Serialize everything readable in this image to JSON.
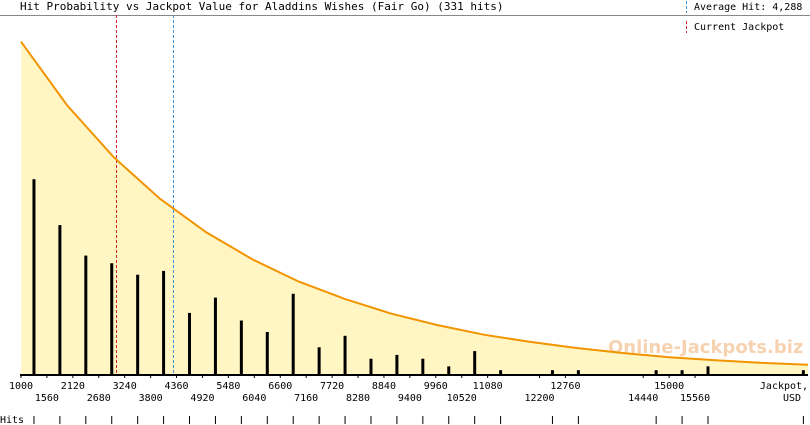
{
  "chart_data": {
    "type": "bar",
    "title": "Hit Probability vs Jackpot Value for Aladdins Wishes (Fair Go) (331 hits)",
    "legend": [
      {
        "label": "Average Hit: 4,288",
        "value": 4288,
        "color": "#3a8fd8"
      },
      {
        "label": "Current Jackpot",
        "value": 3043,
        "color": "#cc2222"
      }
    ],
    "watermark": "Online-Jackpots.biz",
    "x_label": [
      "Jackpot,",
      "USD"
    ],
    "rug_label": "Hits",
    "xlim": [
      1000,
      18000
    ],
    "ylim": [
      0,
      94
    ],
    "xticks": [
      1000,
      1560,
      2120,
      2680,
      3240,
      3800,
      4360,
      4920,
      5480,
      6040,
      6600,
      7160,
      7720,
      8280,
      8840,
      9400,
      9960,
      10520,
      11080,
      12200,
      12760,
      14440,
      15000,
      15560
    ],
    "x": [
      1280,
      1840,
      2400,
      2960,
      3520,
      4080,
      4640,
      5200,
      5760,
      6320,
      6880,
      7440,
      8000,
      8560,
      9120,
      9680,
      10240,
      10800,
      11360,
      12480,
      13040,
      14720,
      15280,
      15840,
      17900
    ],
    "values": [
      51,
      39,
      31,
      29,
      26,
      27,
      16,
      20,
      14,
      11,
      21,
      7,
      10,
      4,
      5,
      4,
      2,
      6,
      1,
      1,
      1,
      1,
      1,
      2,
      1
    ],
    "color": "#000000",
    "curve": {
      "color": "#f29400",
      "fill": "#fff6c4",
      "x": [
        1000,
        2000,
        3000,
        4000,
        5000,
        6000,
        7000,
        8000,
        9000,
        10000,
        11000,
        12000,
        13000,
        14000,
        15000,
        16000,
        17000,
        18000
      ],
      "values": [
        87,
        70.3,
        56.8,
        45.9,
        37.1,
        30.0,
        24.2,
        19.6,
        15.8,
        12.8,
        10.3,
        8.4,
        6.8,
        5.5,
        4.4,
        3.6,
        2.9,
        2.4
      ]
    }
  }
}
